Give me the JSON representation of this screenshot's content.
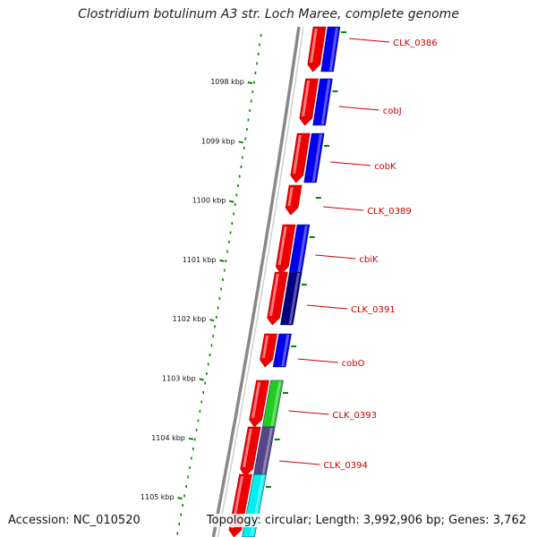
{
  "title": "Clostridium botulinum A3 str. Loch Maree, complete genome",
  "accession_text": "Accession: NC_010520",
  "topology_text": "Topology: circular; Length: 3,992,906 bp; Genes: 3,762",
  "colors": {
    "forward_frame": "#ee0000",
    "reverse_frame": "#0000ee",
    "dark_blue": "#000080",
    "green": "#22cc22",
    "slate": "#554488",
    "cyan": "#00eeee",
    "label": "#cc0000",
    "backbone": "#888888",
    "gc_ticks": "#008800"
  },
  "scale_ticks": [
    {
      "label": "1098 kbp",
      "kbp": 1098
    },
    {
      "label": "1099 kbp",
      "kbp": 1099
    },
    {
      "label": "1100 kbp",
      "kbp": 1100
    },
    {
      "label": "1101 kbp",
      "kbp": 1101
    },
    {
      "label": "1102 kbp",
      "kbp": 1102
    },
    {
      "label": "1103 kbp",
      "kbp": 1103
    },
    {
      "label": "1104 kbp",
      "kbp": 1104
    },
    {
      "label": "1105 kbp",
      "kbp": 1105
    }
  ],
  "genes": [
    {
      "label": "CLK_0386",
      "color": "blue"
    },
    {
      "label": "cobJ",
      "color": "blue"
    },
    {
      "label": "cobK",
      "color": "blue"
    },
    {
      "label": "CLK_0389",
      "color": "none"
    },
    {
      "label": "cbiK",
      "color": "blue"
    },
    {
      "label": "CLK_0391",
      "color": "dark_blue"
    },
    {
      "label": "cobO",
      "color": "blue"
    },
    {
      "label": "CLK_0393",
      "color": "green"
    },
    {
      "label": "CLK_0394",
      "color": "slate"
    },
    {
      "label": "",
      "color": "cyan"
    }
  ]
}
